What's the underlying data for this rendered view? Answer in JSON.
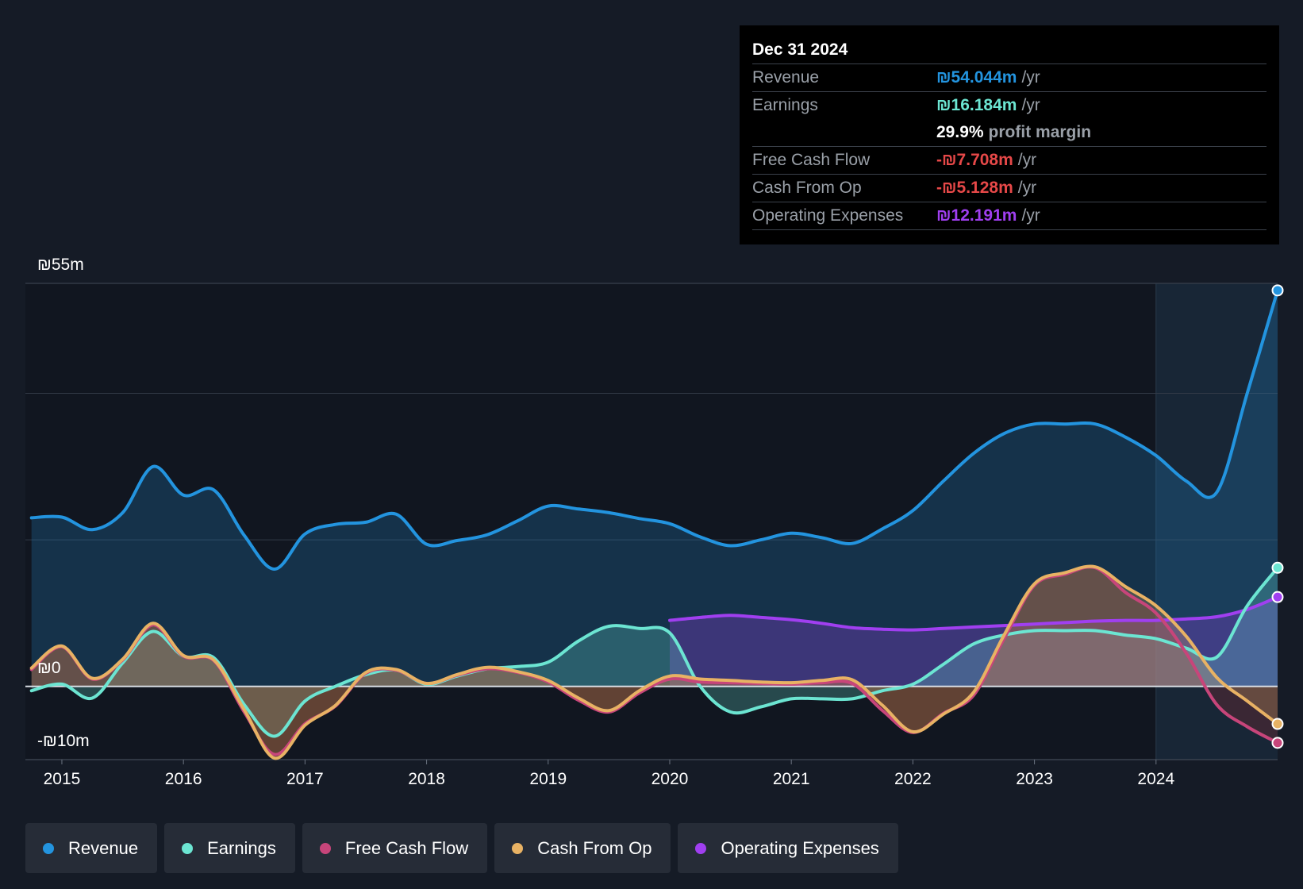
{
  "tooltip": {
    "date": "Dec 31 2024",
    "revenue_label": "Revenue",
    "revenue_value": "₪54.044m",
    "revenue_unit": "/yr",
    "earnings_label": "Earnings",
    "earnings_value": "₪16.184m",
    "earnings_unit": "/yr",
    "margin_value": "29.9%",
    "margin_label": "profit margin",
    "fcf_label": "Free Cash Flow",
    "fcf_value": "-₪7.708m",
    "fcf_unit": "/yr",
    "cfo_label": "Cash From Op",
    "cfo_value": "-₪5.128m",
    "cfo_unit": "/yr",
    "opex_label": "Operating Expenses",
    "opex_value": "₪12.191m",
    "opex_unit": "/yr"
  },
  "colors": {
    "background": "#151b26",
    "revenue": "#2394df",
    "earnings": "#6ce5d2",
    "fcf": "#c7457a",
    "cfo": "#e8b264",
    "opex": "#a03ff0",
    "negative": "#e64848"
  },
  "legend": [
    {
      "label": "Revenue",
      "color": "#2394df"
    },
    {
      "label": "Earnings",
      "color": "#6ce5d2"
    },
    {
      "label": "Free Cash Flow",
      "color": "#c7457a"
    },
    {
      "label": "Cash From Op",
      "color": "#e8b264"
    },
    {
      "label": "Operating Expenses",
      "color": "#a03ff0"
    }
  ],
  "chart_data": {
    "type": "line",
    "title": "",
    "xlabel": "",
    "ylabel": "",
    "y_tick_labels": [
      "₪55m",
      "₪0",
      "-₪10m"
    ],
    "x_tick_labels": [
      "2015",
      "2016",
      "2017",
      "2018",
      "2019",
      "2020",
      "2021",
      "2022",
      "2023",
      "2024"
    ],
    "xlim": [
      2014.7,
      2025.0
    ],
    "ylim": [
      -10,
      55
    ],
    "future_shading_start": 2024.0,
    "series": [
      {
        "name": "Revenue",
        "key": "revenue",
        "area": true,
        "x": [
          2014.75,
          2015.0,
          2015.25,
          2015.5,
          2015.75,
          2016.0,
          2016.25,
          2016.5,
          2016.75,
          2017.0,
          2017.25,
          2017.5,
          2017.75,
          2018.0,
          2018.25,
          2018.5,
          2018.75,
          2019.0,
          2019.25,
          2019.5,
          2019.75,
          2020.0,
          2020.25,
          2020.5,
          2020.75,
          2021.0,
          2021.25,
          2021.5,
          2021.75,
          2022.0,
          2022.25,
          2022.5,
          2022.75,
          2023.0,
          2023.25,
          2023.5,
          2023.75,
          2024.0,
          2024.25,
          2024.5,
          2024.75,
          2025.0
        ],
        "values": [
          23.0,
          23.1,
          21.4,
          23.7,
          30.0,
          26.1,
          26.8,
          20.6,
          16.0,
          20.8,
          22.1,
          22.4,
          23.5,
          19.4,
          19.9,
          20.7,
          22.6,
          24.6,
          24.2,
          23.7,
          22.9,
          22.2,
          20.4,
          19.2,
          20.0,
          20.9,
          20.3,
          19.5,
          21.5,
          24.0,
          28.0,
          31.8,
          34.5,
          35.8,
          35.8,
          35.8,
          34.0,
          31.5,
          28.0,
          26.5,
          40.0,
          54.044
        ]
      },
      {
        "name": "Earnings",
        "key": "earnings",
        "area": true,
        "x": [
          2014.75,
          2015.0,
          2015.25,
          2015.5,
          2015.75,
          2016.0,
          2016.25,
          2016.5,
          2016.75,
          2017.0,
          2017.25,
          2017.5,
          2017.75,
          2018.0,
          2018.25,
          2018.5,
          2018.75,
          2019.0,
          2019.25,
          2019.5,
          2019.75,
          2020.0,
          2020.25,
          2020.5,
          2020.75,
          2021.0,
          2021.25,
          2021.5,
          2021.75,
          2022.0,
          2022.25,
          2022.5,
          2022.75,
          2023.0,
          2023.25,
          2023.5,
          2023.75,
          2024.0,
          2024.25,
          2024.5,
          2024.75,
          2025.0
        ],
        "values": [
          -0.6,
          0.3,
          -1.6,
          3.2,
          7.5,
          4.1,
          3.9,
          -2.5,
          -6.8,
          -2.0,
          0.0,
          1.6,
          2.2,
          0.3,
          1.4,
          2.4,
          2.7,
          3.3,
          6.2,
          8.2,
          7.9,
          7.3,
          0.0,
          -3.5,
          -2.8,
          -1.7,
          -1.7,
          -1.7,
          -0.6,
          0.3,
          3.0,
          5.8,
          7.0,
          7.6,
          7.6,
          7.6,
          7.0,
          6.5,
          5.2,
          4.0,
          11.0,
          16.184
        ]
      },
      {
        "name": "Free Cash Flow",
        "key": "fcf",
        "area": true,
        "x": [
          2014.75,
          2015.0,
          2015.25,
          2015.5,
          2015.75,
          2016.0,
          2016.25,
          2016.5,
          2016.75,
          2017.0,
          2017.25,
          2017.5,
          2017.75,
          2018.0,
          2018.25,
          2018.5,
          2018.75,
          2019.0,
          2019.25,
          2019.5,
          2019.75,
          2020.0,
          2020.25,
          2020.5,
          2020.75,
          2021.0,
          2021.25,
          2021.5,
          2021.75,
          2022.0,
          2022.25,
          2022.5,
          2022.75,
          2023.0,
          2023.25,
          2023.5,
          2023.75,
          2024.0,
          2024.25,
          2024.5,
          2024.75,
          2025.0
        ],
        "values": [
          2.3,
          5.4,
          1.0,
          3.6,
          8.4,
          4.1,
          3.5,
          -3.5,
          -9.3,
          -5.1,
          -2.7,
          1.8,
          2.2,
          0.4,
          1.5,
          2.4,
          1.9,
          0.6,
          -1.9,
          -3.5,
          -0.9,
          1.0,
          0.6,
          0.5,
          0.4,
          0.3,
          0.5,
          0.4,
          -3.3,
          -6.3,
          -3.7,
          -1.2,
          6.5,
          13.8,
          15.3,
          16.2,
          12.8,
          10.0,
          4.5,
          -2.5,
          -5.5,
          -7.708
        ]
      },
      {
        "name": "Cash From Op",
        "key": "cfo",
        "area": true,
        "x": [
          2014.75,
          2015.0,
          2015.25,
          2015.5,
          2015.75,
          2016.0,
          2016.25,
          2016.5,
          2016.75,
          2017.0,
          2017.25,
          2017.5,
          2017.75,
          2018.0,
          2018.25,
          2018.5,
          2018.75,
          2019.0,
          2019.25,
          2019.5,
          2019.75,
          2020.0,
          2020.25,
          2020.5,
          2020.75,
          2021.0,
          2021.25,
          2021.5,
          2021.75,
          2022.0,
          2022.25,
          2022.5,
          2022.75,
          2023.0,
          2023.25,
          2023.5,
          2023.75,
          2024.0,
          2024.25,
          2024.5,
          2024.75,
          2025.0
        ],
        "values": [
          2.5,
          5.5,
          1.1,
          3.7,
          8.6,
          4.2,
          3.6,
          -3.2,
          -9.8,
          -5.3,
          -2.6,
          1.9,
          2.3,
          0.4,
          1.6,
          2.6,
          2.0,
          0.8,
          -1.6,
          -3.3,
          -0.6,
          1.4,
          1.0,
          0.8,
          0.6,
          0.5,
          0.8,
          0.9,
          -2.6,
          -6.2,
          -3.8,
          -0.8,
          7.0,
          14.0,
          15.5,
          16.3,
          13.6,
          11.0,
          6.8,
          1.2,
          -2.0,
          -5.128
        ]
      },
      {
        "name": "Operating Expenses",
        "key": "opex",
        "area": true,
        "x": [
          2020.0,
          2020.25,
          2020.5,
          2020.75,
          2021.0,
          2021.25,
          2021.5,
          2021.75,
          2022.0,
          2022.25,
          2022.5,
          2022.75,
          2023.0,
          2023.25,
          2023.5,
          2023.75,
          2024.0,
          2024.25,
          2024.5,
          2024.75,
          2025.0
        ],
        "values": [
          9.0,
          9.4,
          9.7,
          9.4,
          9.1,
          8.6,
          8.0,
          7.8,
          7.7,
          7.9,
          8.1,
          8.3,
          8.5,
          8.7,
          8.9,
          9.0,
          9.0,
          9.2,
          9.5,
          10.5,
          12.191
        ]
      }
    ]
  }
}
